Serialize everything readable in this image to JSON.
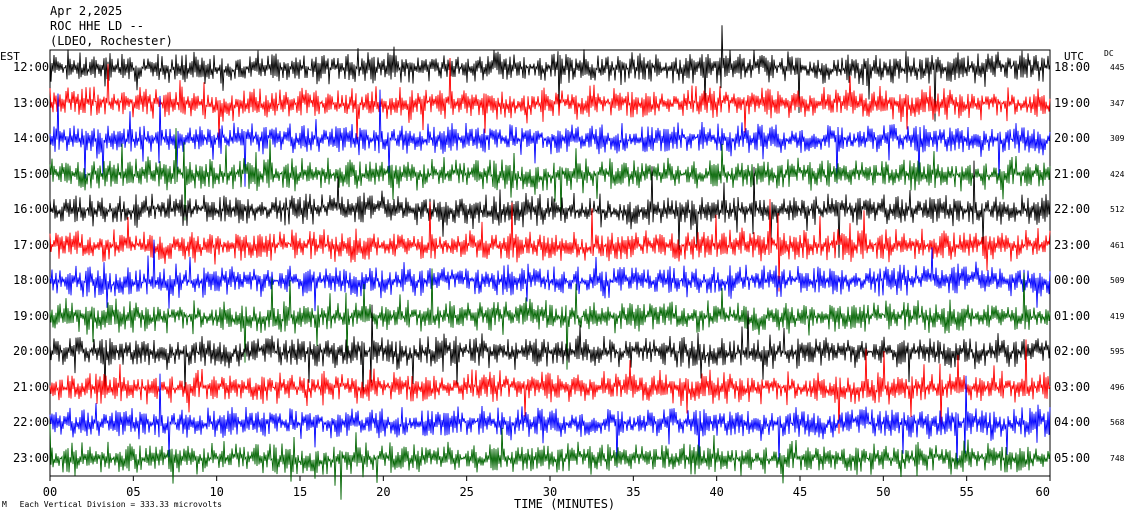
{
  "header": {
    "date": "Apr 2,2025",
    "station": "ROC HHE LD --",
    "network": "(LDEO, Rochester)"
  },
  "axis_heads": {
    "left": "EST",
    "right": "UTC",
    "dc": "DC"
  },
  "footer": {
    "mark": "M",
    "note": "Each Vertical Division =  333.33 microvolts"
  },
  "colors": {
    "black": "#000000",
    "red": "#ff0000",
    "blue": "#0000ff",
    "green": "#006400"
  },
  "chart_data": {
    "type": "line",
    "title": "ROC HHE LD --",
    "xlabel": "TIME (MINUTES)",
    "x_ticks": [
      "00",
      "05",
      "10",
      "15",
      "20",
      "25",
      "30",
      "35",
      "40",
      "45",
      "50",
      "55",
      "60"
    ],
    "xlim": [
      0,
      60
    ],
    "rows": [
      {
        "est": "12:00",
        "utc": "18:00",
        "dc": "445",
        "color": "black"
      },
      {
        "est": "13:00",
        "utc": "19:00",
        "dc": "347",
        "color": "red"
      },
      {
        "est": "14:00",
        "utc": "20:00",
        "dc": "309",
        "color": "blue"
      },
      {
        "est": "15:00",
        "utc": "21:00",
        "dc": "424",
        "color": "green"
      },
      {
        "est": "16:00",
        "utc": "22:00",
        "dc": "512",
        "color": "black"
      },
      {
        "est": "17:00",
        "utc": "23:00",
        "dc": "461",
        "color": "red"
      },
      {
        "est": "18:00",
        "utc": "00:00",
        "dc": "509",
        "color": "blue"
      },
      {
        "est": "19:00",
        "utc": "01:00",
        "dc": "419",
        "color": "green"
      },
      {
        "est": "20:00",
        "utc": "02:00",
        "dc": "595",
        "color": "black"
      },
      {
        "est": "21:00",
        "utc": "03:00",
        "dc": "496",
        "color": "red"
      },
      {
        "est": "22:00",
        "utc": "04:00",
        "dc": "568",
        "color": "blue"
      },
      {
        "est": "23:00",
        "utc": "05:00",
        "dc": "748",
        "color": "green"
      }
    ]
  }
}
